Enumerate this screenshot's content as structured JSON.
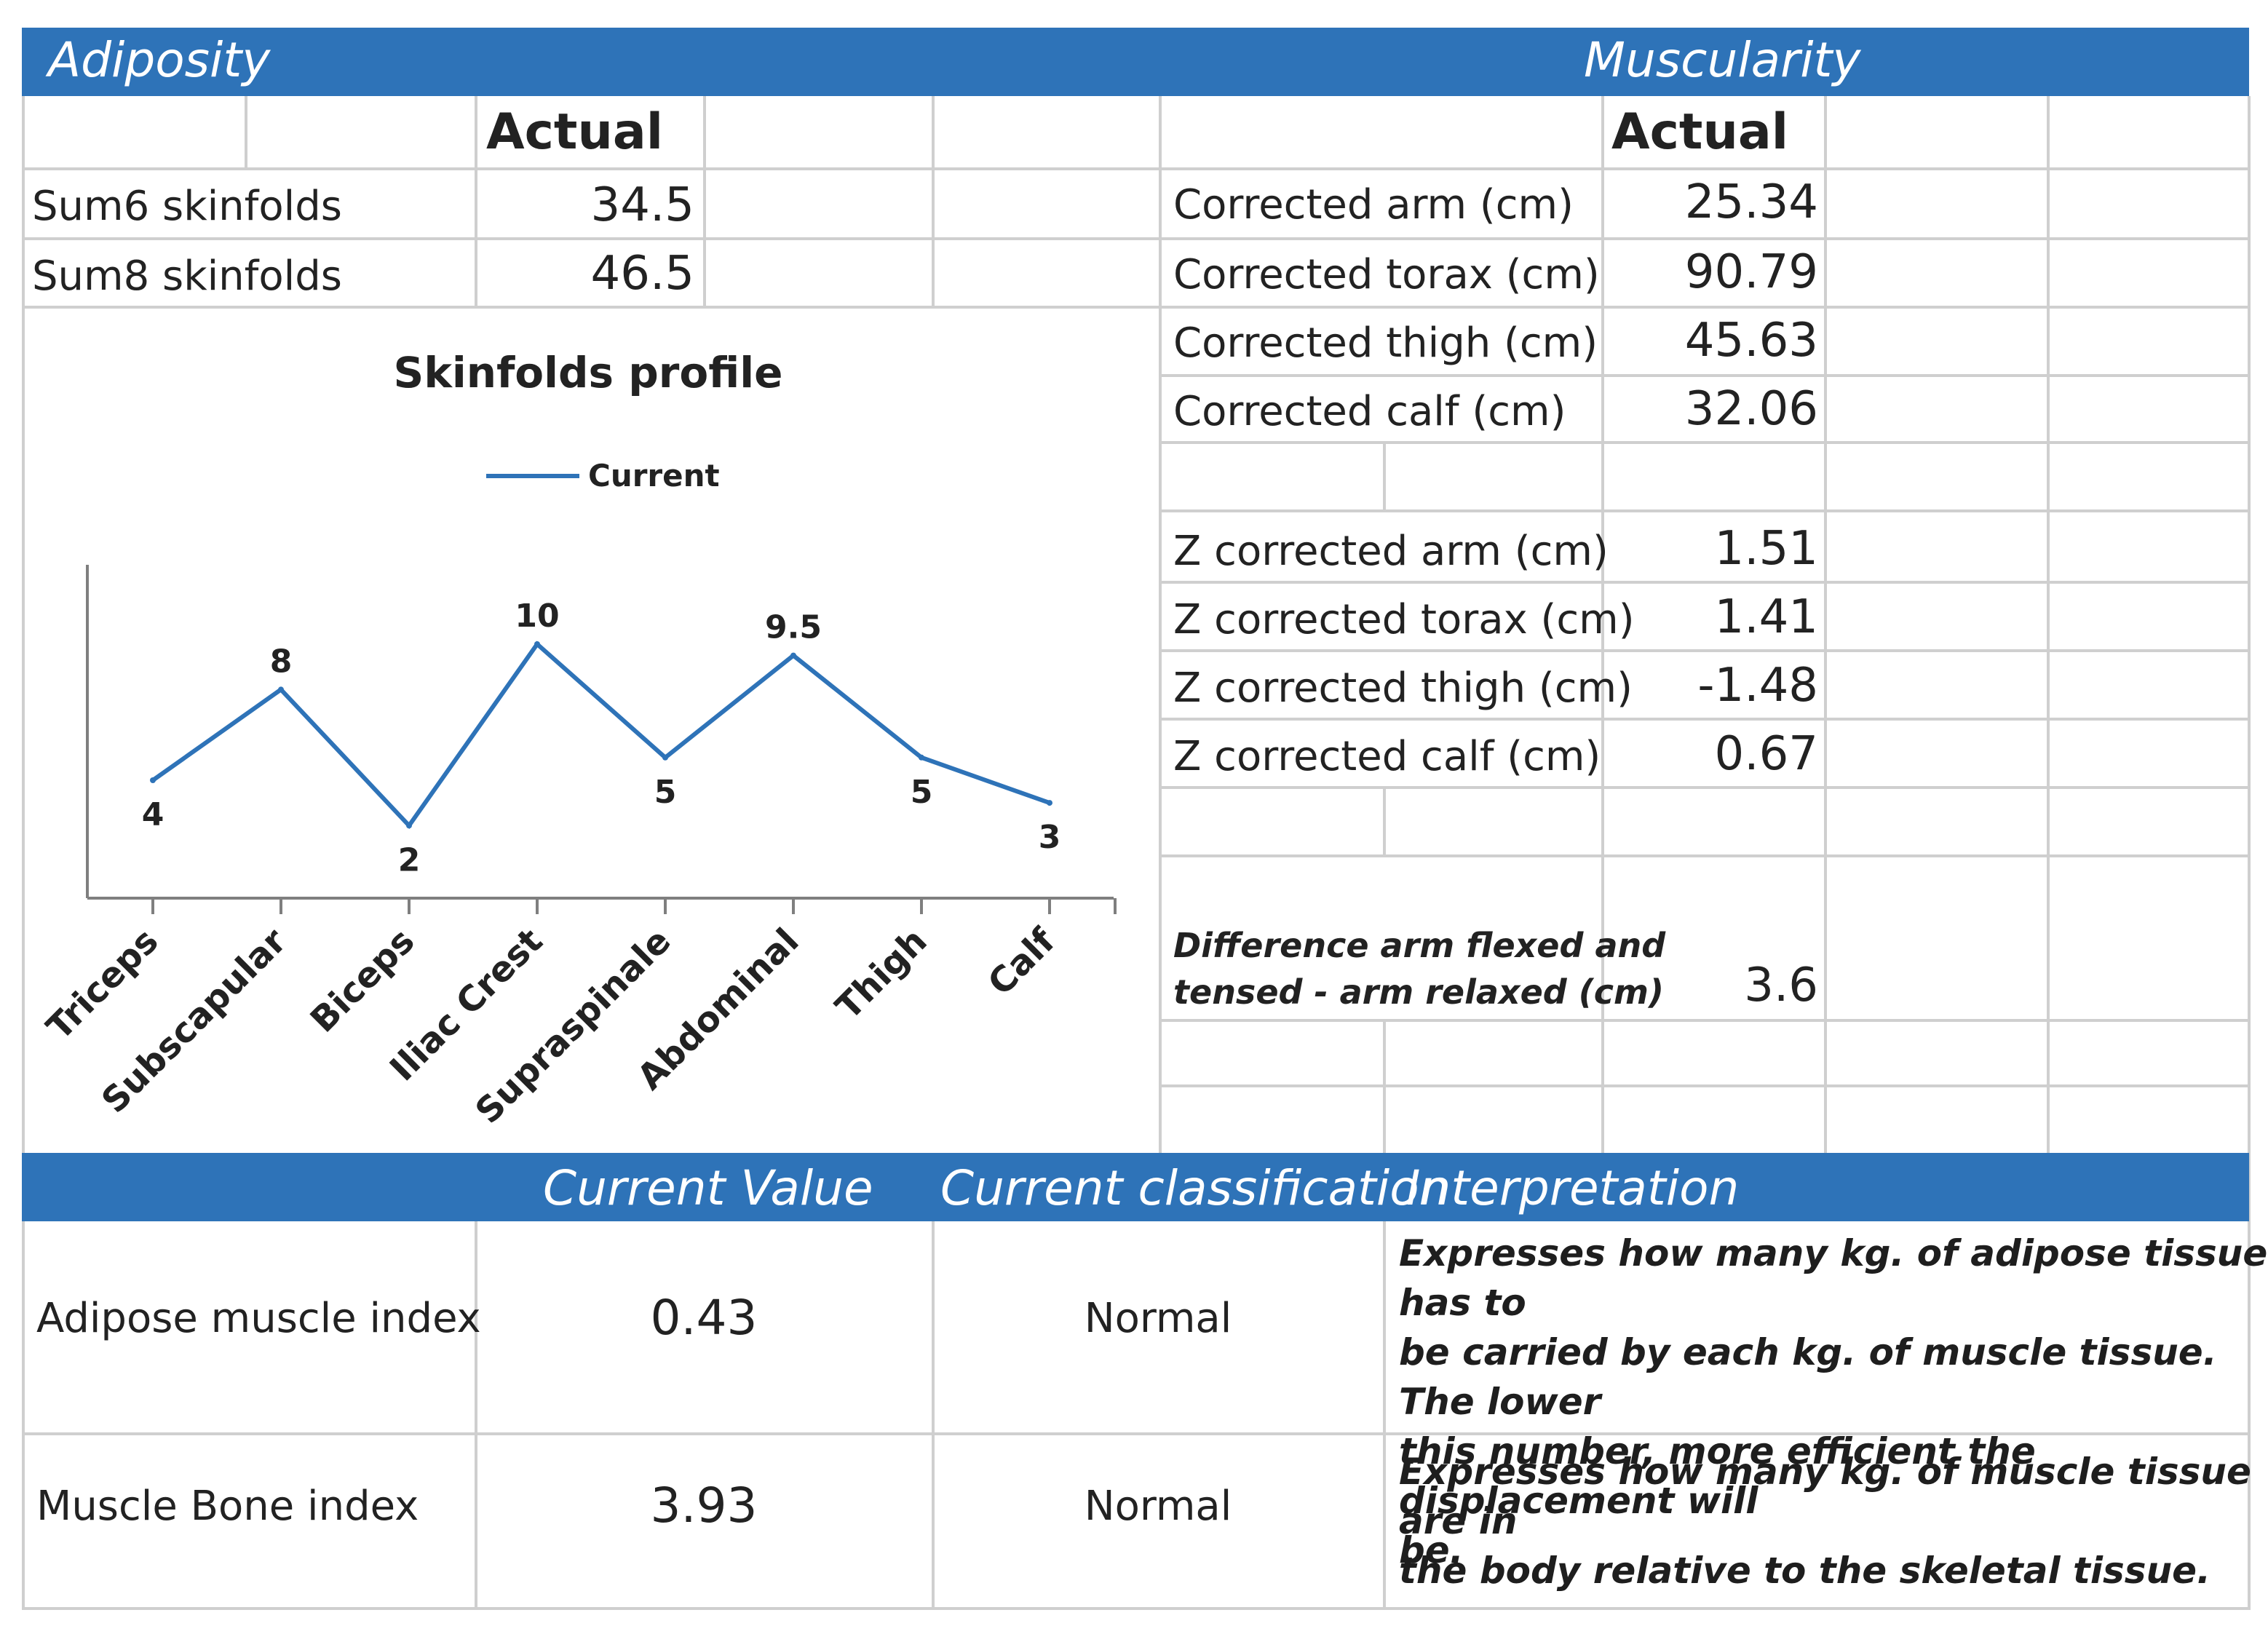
{
  "adiposity": {
    "title": "Adiposity",
    "column_header": "Actual",
    "rows": [
      {
        "label": "Sum6 skinfolds",
        "value": "34.5"
      },
      {
        "label": "Sum8 skinfolds",
        "value": "46.5"
      }
    ]
  },
  "muscularity": {
    "title": "Muscularity",
    "column_header": "Actual",
    "corrected": [
      {
        "label": "Corrected arm (cm)",
        "value": "25.34"
      },
      {
        "label": "Corrected torax (cm)",
        "value": "90.79"
      },
      {
        "label": "Corrected thigh (cm)",
        "value": "45.63"
      },
      {
        "label": "Corrected calf (cm)",
        "value": "32.06"
      }
    ],
    "z_scores": [
      {
        "label": "Z corrected arm (cm)",
        "value": "1.51"
      },
      {
        "label": "Z corrected torax (cm)",
        "value": "1.41"
      },
      {
        "label": "Z corrected thigh (cm)",
        "value": "-1.48"
      },
      {
        "label": "Z corrected calf (cm)",
        "value": "0.67"
      }
    ],
    "difference": {
      "label_line1": "Difference arm flexed and",
      "label_line2": "tensed - arm relaxed (cm)",
      "value": "3.6"
    }
  },
  "indices": {
    "headers": {
      "current_value": "Current Value",
      "current_classification": "Current classification",
      "interpretation": "Interpretation"
    },
    "rows": [
      {
        "name": "Adipose muscle index",
        "value": "0.43",
        "classification": "Normal",
        "interpretation_lines": [
          "Expresses how many kg. of adipose tissue has to",
          "be carried by each kg. of muscle tissue. The lower",
          "this number, more efficient the displacement will",
          "be."
        ]
      },
      {
        "name": "Muscle Bone index",
        "value": "3.93",
        "classification": "Normal",
        "interpretation_lines": [
          "Expresses how many kg. of muscle tissue are in",
          "the body relative to the skeletal tissue."
        ]
      }
    ]
  },
  "colors": {
    "header_blue": "#2e73b8",
    "series_line": "#2e73b8",
    "grid": "#cfcfcf"
  },
  "chart_data": {
    "type": "line",
    "title": "Skinfolds profile",
    "legend": [
      "Current"
    ],
    "legend_position": "top-center",
    "xlabel": "",
    "ylabel": "",
    "grid": false,
    "categories": [
      "Triceps",
      "Subscapular",
      "Biceps",
      "Iliac Crest",
      "Supraspinale",
      "Abdominal",
      "Thigh",
      "Calf"
    ],
    "series": [
      {
        "name": "Current",
        "values": [
          4,
          8,
          2,
          10,
          5,
          9.5,
          5,
          3
        ],
        "labels": [
          "4",
          "8",
          "2",
          "10",
          "5",
          "9.5",
          "5",
          "3"
        ]
      }
    ],
    "ylim": [
      -1.2,
      13.5
    ]
  }
}
